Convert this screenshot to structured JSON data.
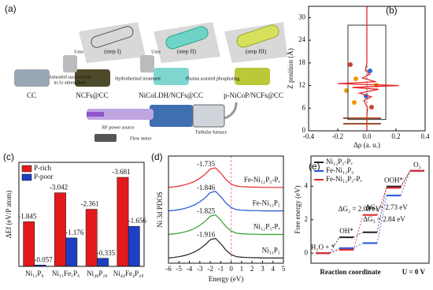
{
  "diagram": {
    "label": "(a)",
    "steps": [
      "(step I)",
      "(step II)",
      "(step III)"
    ],
    "materials": [
      "CC",
      "NCFs@CC",
      "NiCoLDH/NCFs@CC",
      "p-NiCoP/NCFs@CC"
    ],
    "processes": [
      "Annealed successively",
      "in Ar atmosphere",
      "Hydrothermal treatment",
      "Plasma assisted phosphating"
    ],
    "reagents": [
      "Urea",
      "Urea"
    ],
    "equipment": [
      "RF power source",
      "Turbular furnace",
      "Flow meter"
    ]
  },
  "chart_data": [
    {
      "type": "profile",
      "label": "(b)",
      "xlabel": "Δρ (a. u.)",
      "ylabel": "Z position (Å)",
      "xlim": [
        -0.4,
        0.4
      ],
      "xticks": [
        -0.4,
        -0.2,
        {
          "value": 0,
          "label": "0.0"
        },
        0.2,
        0.4
      ],
      "ylim": [
        0,
        33
      ],
      "yticks": [
        0,
        6,
        12,
        18,
        24,
        30
      ],
      "y": [
        0,
        4,
        6,
        8,
        9,
        10,
        11,
        11.5,
        12,
        12.5,
        13,
        14,
        15,
        16,
        18,
        20,
        33
      ],
      "series": [
        {
          "color": "#e8262a",
          "values": [
            0,
            0,
            0.005,
            -0.02,
            0.03,
            -0.05,
            0.08,
            -0.1,
            0.22,
            -0.2,
            0.06,
            -0.03,
            0.02,
            -0.01,
            0,
            0,
            0
          ]
        }
      ]
    },
    {
      "type": "bar",
      "label": "(c)",
      "ylabel": "ΔEf (eV/P atom)",
      "categories": [
        "Ni₁₂P₆",
        "Ni₁₁Fe₁P₆",
        "Ni₄₈P₂₀",
        "Ni₄₄Fe₄P₂₀"
      ],
      "ylim": [
        0,
        -4.3
      ],
      "legend": "upper left",
      "series": [
        {
          "name": "P-rich",
          "color": "#e31a1c",
          "values": [
            -1.845,
            -3.042,
            -2.361,
            -3.681
          ]
        },
        {
          "name": "P-poor",
          "color": "#1c3fc4",
          "values": [
            -0.057,
            -1.176,
            -0.335,
            -1.656
          ]
        }
      ]
    },
    {
      "type": "line",
      "label": "(d)",
      "xlabel": "Energy (eV)",
      "ylabel": "Ni 3d PDOS",
      "xlim": [
        -6,
        5
      ],
      "xticks": [
        -6,
        -5,
        -4,
        -3,
        -2,
        -1,
        0,
        1,
        2,
        3,
        4,
        5
      ],
      "ylim": [
        0,
        4.1
      ],
      "x": [
        -6,
        -5.5,
        -5,
        -4.5,
        -4,
        -3.5,
        -3,
        -2.5,
        -2,
        -1.5,
        -1,
        -0.5,
        0,
        0.5,
        1,
        1.5,
        2,
        2.5,
        3,
        3.5,
        4,
        4.5,
        5
      ],
      "series": [
        {
          "name": "Ni₁₂P₅",
          "color": "#222222",
          "center_label": "-1.916",
          "values": [
            0.2,
            0.22,
            0.25,
            0.29,
            0.35,
            0.43,
            0.55,
            0.7,
            0.9,
            0.95,
            0.75,
            0.5,
            0.33,
            0.25,
            0.23,
            0.22,
            0.21,
            0.21,
            0.2,
            0.2,
            0.2,
            0.2,
            0.2
          ]
        },
        {
          "name": "Ni₁₂P₅-Pᵥ",
          "color": "#2ca02c",
          "center_label": "-1.825",
          "values": [
            1.1,
            1.12,
            1.15,
            1.19,
            1.25,
            1.33,
            1.45,
            1.6,
            1.8,
            1.85,
            1.65,
            1.4,
            1.23,
            1.15,
            1.13,
            1.12,
            1.11,
            1.11,
            1.1,
            1.1,
            1.1,
            1.1,
            1.1
          ]
        },
        {
          "name": "Fe-Ni₁₂P₅",
          "color": "#2055d6",
          "center_label": "-1.846",
          "values": [
            2.0,
            2.02,
            2.05,
            2.09,
            2.15,
            2.23,
            2.35,
            2.5,
            2.7,
            2.75,
            2.55,
            2.3,
            2.13,
            2.05,
            2.03,
            2.02,
            2.01,
            2.01,
            2.0,
            2.0,
            2.0,
            2.0,
            2.0
          ]
        },
        {
          "name": "Fe-Ni₁₂P₅-Pᵥ",
          "color": "#e8262a",
          "center_label": "-1.735",
          "values": [
            2.9,
            2.92,
            2.95,
            2.99,
            3.05,
            3.13,
            3.25,
            3.4,
            3.6,
            3.65,
            3.45,
            3.2,
            3.03,
            2.95,
            2.93,
            2.92,
            2.91,
            2.91,
            2.9,
            2.9,
            2.9,
            2.9,
            2.9
          ]
        }
      ]
    },
    {
      "type": "step",
      "label": "(e)",
      "xlabel": "Reaction coordinate",
      "ylabel": "Free energy (eV)",
      "note": "U = 0 V",
      "categories": [
        "H₂O + *",
        "OH*",
        "O*",
        "OOH*",
        "O₂"
      ],
      "ylim": [
        -0.6,
        5.8
      ],
      "yticks": [
        0,
        2,
        4
      ],
      "legend": "upper left",
      "series": [
        {
          "name": "Ni₁₂P₅-Pᵥ",
          "color": "#222222",
          "values": [
            0,
            0.95,
            1.25,
            3.98,
            4.92
          ]
        },
        {
          "name": "Fe-Ni₁₂P₅",
          "color": "#2055d6",
          "values": [
            0,
            0.3,
            0.6,
            3.44,
            4.92
          ]
        },
        {
          "name": "Fe-Ni₁₂P₅-Pᵥ",
          "color": "#e8262a",
          "values": [
            0,
            0.2,
            2.28,
            3.9,
            4.92
          ]
        }
      ],
      "annotations": [
        {
          "text": "ΔG₂ = 2.08 eV",
          "color": "#e8262a"
        },
        {
          "text": "ΔG₃ = 2.73 eV",
          "color": "#222222"
        },
        {
          "text": "ΔG₃ = 2.84 eV",
          "color": "#2055d6"
        }
      ]
    }
  ]
}
